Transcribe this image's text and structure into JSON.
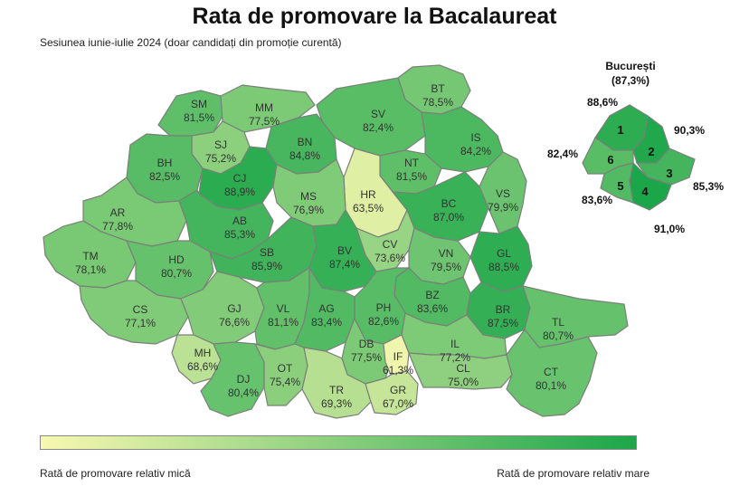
{
  "title": "Rata de promovare la Bacalaureat",
  "subtitle": "Sesiunea iunie-iulie 2024 (doar candidați din promoție curentă)",
  "colors": {
    "low": "#f8f8b0",
    "high": "#1ca64a",
    "border": "#7a7f7a"
  },
  "legend": {
    "low_label": "Rată de promovare relativ mică",
    "high_label": "Rată de promovare relativ mare"
  },
  "counties": [
    {
      "code": "SM",
      "value": "81,5%",
      "rate": 81.5
    },
    {
      "code": "MM",
      "value": "77,5%",
      "rate": 77.5
    },
    {
      "code": "BT",
      "value": "78,5%",
      "rate": 78.5
    },
    {
      "code": "SV",
      "value": "82,4%",
      "rate": 82.4
    },
    {
      "code": "SJ",
      "value": "75,2%",
      "rate": 75.2
    },
    {
      "code": "BN",
      "value": "84,8%",
      "rate": 84.8
    },
    {
      "code": "IS",
      "value": "84,2%",
      "rate": 84.2
    },
    {
      "code": "BH",
      "value": "82,5%",
      "rate": 82.5
    },
    {
      "code": "CJ",
      "value": "88,9%",
      "rate": 88.9
    },
    {
      "code": "NT",
      "value": "81,5%",
      "rate": 81.5
    },
    {
      "code": "HR",
      "value": "63,5%",
      "rate": 63.5
    },
    {
      "code": "MS",
      "value": "76,9%",
      "rate": 76.9
    },
    {
      "code": "BC",
      "value": "87,0%",
      "rate": 87.0
    },
    {
      "code": "VS",
      "value": "79,9%",
      "rate": 79.9
    },
    {
      "code": "AR",
      "value": "77,8%",
      "rate": 77.8
    },
    {
      "code": "AB",
      "value": "85,3%",
      "rate": 85.3
    },
    {
      "code": "CV",
      "value": "73,6%",
      "rate": 73.6
    },
    {
      "code": "VN",
      "value": "79,5%",
      "rate": 79.5
    },
    {
      "code": "GL",
      "value": "88,5%",
      "rate": 88.5
    },
    {
      "code": "TM",
      "value": "78,1%",
      "rate": 78.1
    },
    {
      "code": "HD",
      "value": "80,7%",
      "rate": 80.7
    },
    {
      "code": "SB",
      "value": "85,9%",
      "rate": 85.9
    },
    {
      "code": "BV",
      "value": "87,4%",
      "rate": 87.4
    },
    {
      "code": "BZ",
      "value": "83,6%",
      "rate": 83.6
    },
    {
      "code": "BR",
      "value": "87,5%",
      "rate": 87.5
    },
    {
      "code": "TL",
      "value": "80,7%",
      "rate": 80.7
    },
    {
      "code": "CS",
      "value": "77,1%",
      "rate": 77.1
    },
    {
      "code": "GJ",
      "value": "76,6%",
      "rate": 76.6
    },
    {
      "code": "VL",
      "value": "81,1%",
      "rate": 81.1
    },
    {
      "code": "AG",
      "value": "83,4%",
      "rate": 83.4
    },
    {
      "code": "PH",
      "value": "82,6%",
      "rate": 82.6
    },
    {
      "code": "DB",
      "value": "77,5%",
      "rate": 77.5
    },
    {
      "code": "IL",
      "value": "77,2%",
      "rate": 77.2
    },
    {
      "code": "MH",
      "value": "68,6%",
      "rate": 68.6
    },
    {
      "code": "IF",
      "value": "61,3%",
      "rate": 61.3
    },
    {
      "code": "DJ",
      "value": "80,4%",
      "rate": 80.4
    },
    {
      "code": "OT",
      "value": "75,4%",
      "rate": 75.4
    },
    {
      "code": "TR",
      "value": "69,3%",
      "rate": 69.3
    },
    {
      "code": "GR",
      "value": "67,0%",
      "rate": 67.0
    },
    {
      "code": "CL",
      "value": "75,0%",
      "rate": 75.0
    },
    {
      "code": "CT",
      "value": "80,1%",
      "rate": 80.1
    }
  ],
  "bucharest": {
    "name": "București",
    "total": "(87,3%)",
    "sectors": [
      {
        "num": "1",
        "value": "88,6%",
        "rate": 88.6
      },
      {
        "num": "2",
        "value": "90,3%",
        "rate": 90.3
      },
      {
        "num": "3",
        "value": "85,3%",
        "rate": 85.3
      },
      {
        "num": "4",
        "value": "91,0%",
        "rate": 91.0
      },
      {
        "num": "5",
        "value": "83,6%",
        "rate": 83.6
      },
      {
        "num": "6",
        "value": "82,4%",
        "rate": 82.4
      }
    ]
  }
}
